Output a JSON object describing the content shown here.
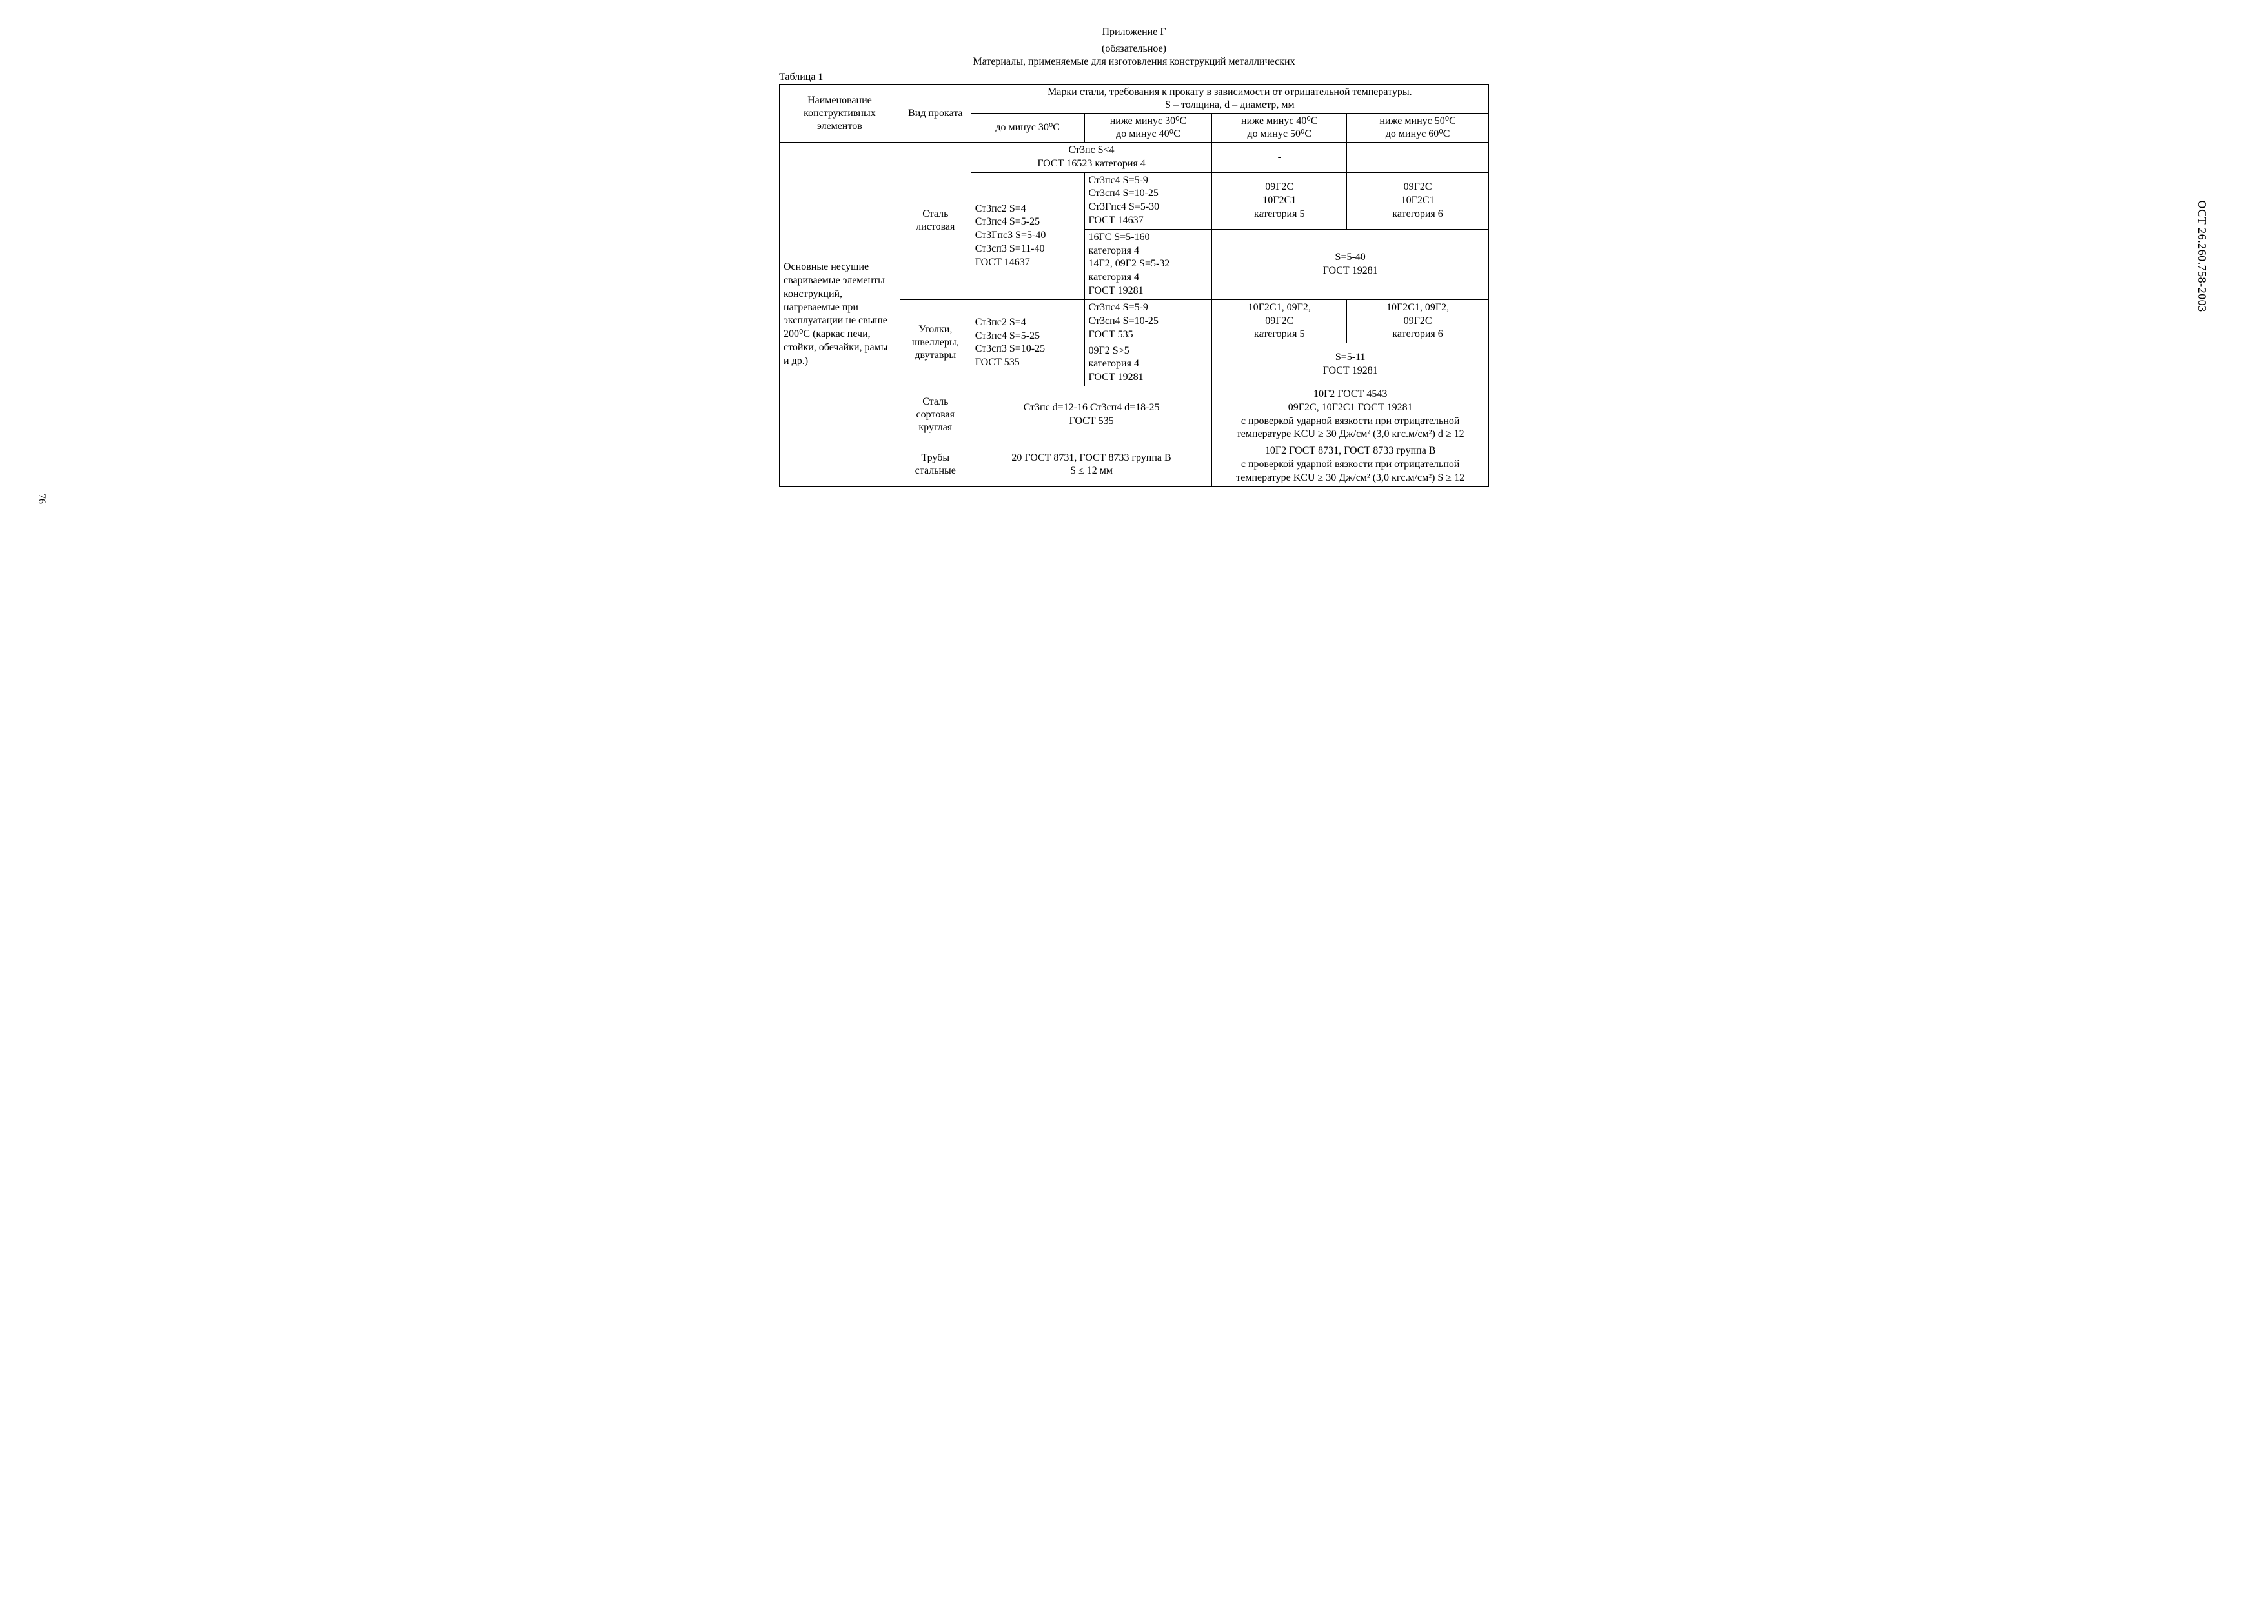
{
  "header": {
    "appendix": "Приложение Г",
    "mandatory": "(обязательное)",
    "title": "Материалы, применяемые для изготовления конструкций металлических",
    "table_label": "Таблица 1"
  },
  "table": {
    "head": {
      "col1": "Наименование конструктивных элементов",
      "col2": "Вид проката",
      "col3_merged": "Марки стали, требования к прокату в зависимости от отрицательной температуры.",
      "col3_sub": "S – толщина, d – диаметр, мм",
      "t1": "до минус 30⁰С",
      "t2a": "ниже минус 30⁰С",
      "t2b": "до минус 40⁰С",
      "t3a": "ниже минус 40⁰С",
      "t3b": "до минус 50⁰С",
      "t4a": "ниже минус 50⁰С",
      "t4b": "до минус 60⁰С"
    },
    "row_element": "Основные несущие свариваемые элементы конструкций, нагреваемые при эксплуатации не свыше 200⁰С (каркас печи, стойки, обечайки, рамы и др.)",
    "rows": {
      "sheet_steel": {
        "type": "Сталь листовая",
        "r1_c12": "Ст3пс S<4\nГОСТ 16523 категория 4",
        "r1_c3": "-",
        "r1_c4": "",
        "r2_c1": "Ст3пс2  S=4\nСт3пс4  S=5-25\nСт3Гпс3  S=5-40\nСт3сп3  S=11-40\nГОСТ 14637",
        "r2a_c2": "Ст3пс4  S=5-9\nСт3сп4  S=10-25\nСт3Гпс4  S=5-30\nГОСТ 14637",
        "r2a_c3": "09Г2С\n10Г2С1\nкатегория 5",
        "r2a_c4": "09Г2С\n10Г2С1\nкатегория 6",
        "r2b_c2": "16ГС  S=5-160\nкатегория 4\n14Г2, 09Г2  S=5-32\nкатегория 4\nГОСТ 19281",
        "r2b_c34": "S=5-40\nГОСТ 19281"
      },
      "angles": {
        "type": "Уголки, швеллеры, двутавры",
        "c1": "Ст3пс2  S=4\nСт3пс4  S=5-25\nСт3сп3  S=10-25\nГОСТ 535",
        "c2a": "Ст3пс4  S=5-9\nСт3сп4  S=10-25\nГОСТ 535",
        "c2b": "09Г2 S>5\nкатегория 4\nГОСТ 19281",
        "c3": "10Г2С1, 09Г2,\n09Г2С\nкатегория 5",
        "c4": "10Г2С1, 09Г2,\n09Г2С\nкатегория 6",
        "c34b": "S=5-11\nГОСТ 19281"
      },
      "round": {
        "type": "Сталь сортовая круглая",
        "c12": "Ст3пс    d=12-16  Ст3сп4  d=18-25\nГОСТ 535",
        "c34": "10Г2 ГОСТ 4543\n09Г2С, 10Г2С1 ГОСТ 19281\nс проверкой ударной вязкости при отрицательной\nтемпературе KCU ≥ 30 Дж/см² (3,0 кгс.м/см²) d ≥ 12"
      },
      "tubes": {
        "type": "Трубы стальные",
        "c12": "20 ГОСТ 8731, ГОСТ 8733 группа В\nS ≤ 12 мм",
        "c34": "10Г2 ГОСТ 8731, ГОСТ 8733 группа В\nс проверкой ударной вязкости при отрицательной\nтемпературе KCU ≥ 30 Дж/см² (3,0 кгс.м/см²) S ≥ 12"
      }
    }
  },
  "side_label": "ОСТ 26.260.758-2003",
  "page_number": "76"
}
